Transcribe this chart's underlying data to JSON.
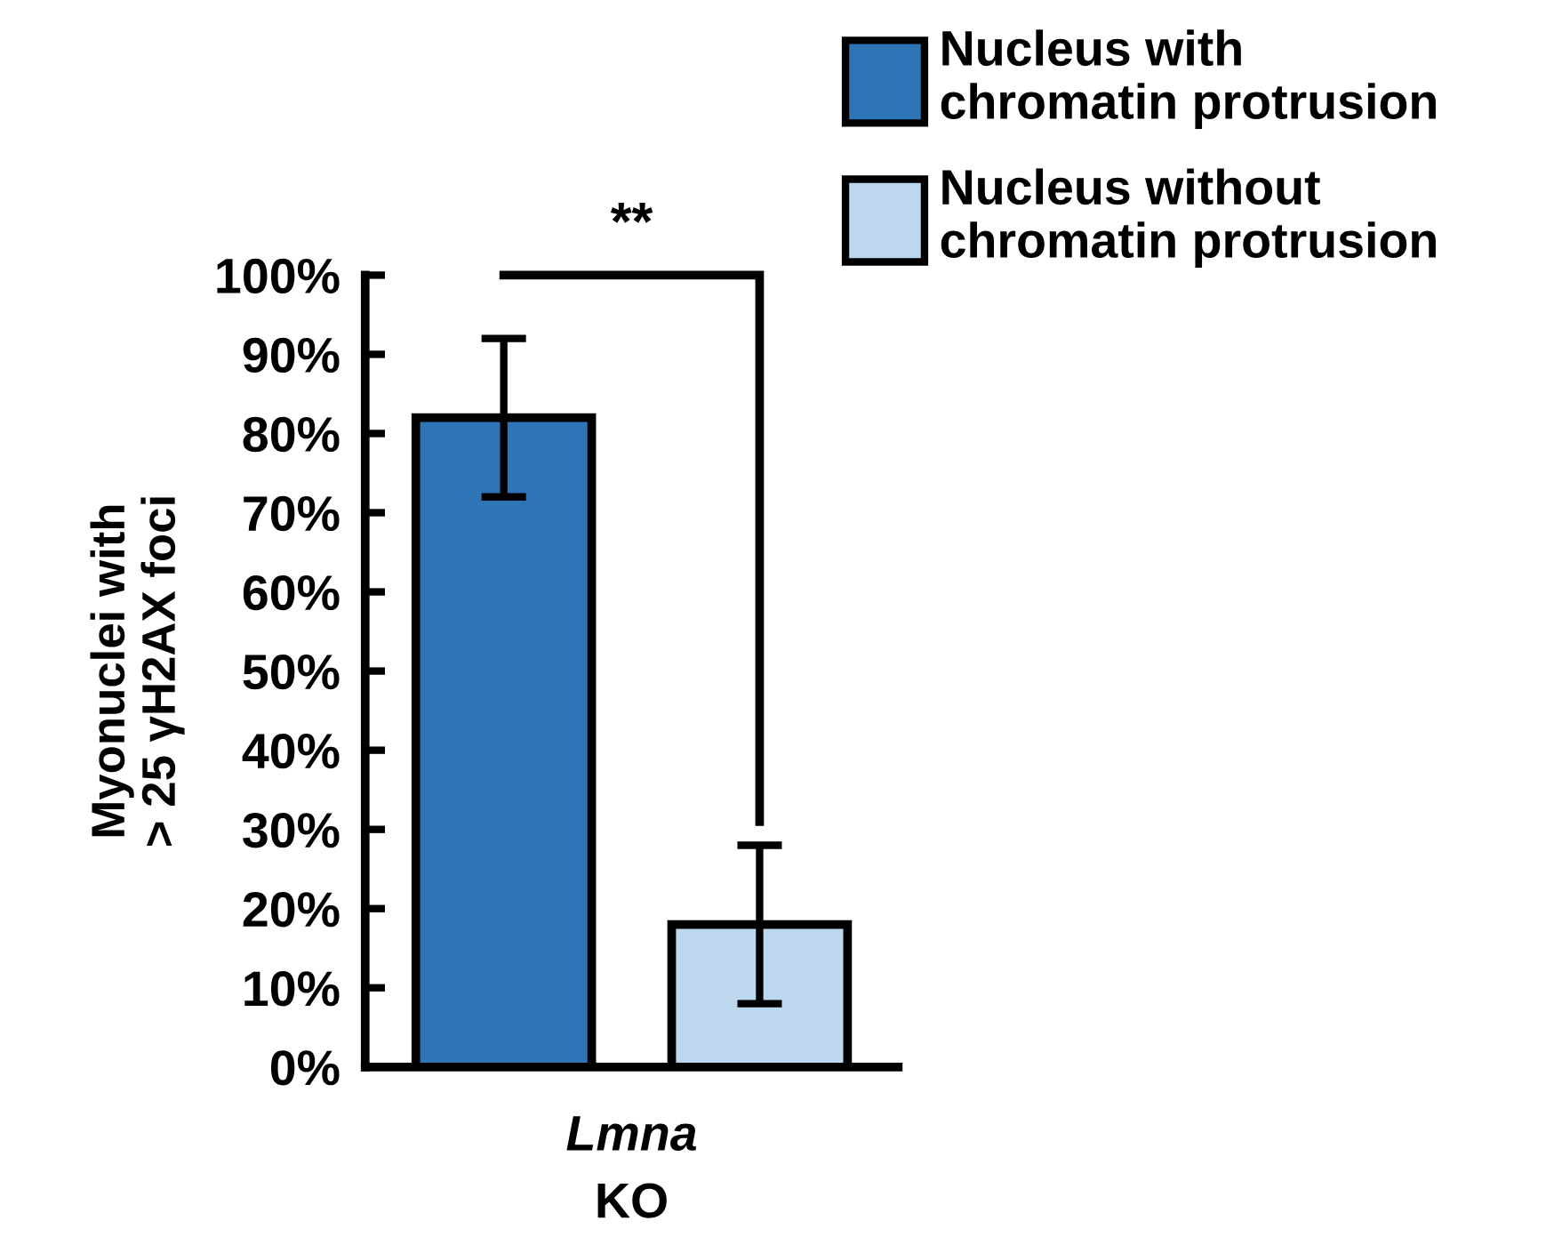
{
  "chart_data": {
    "type": "bar",
    "ylabel": "Myonuclei with\n> 25 γH2AX foci",
    "categories": [
      "Lmna\nKO"
    ],
    "series": [
      {
        "name": "Nucleus with\nchromatin protrusion",
        "color": "#2e75b6",
        "values": [
          82
        ],
        "errors": [
          10
        ]
      },
      {
        "name": "Nucleus without\nchromatin protrusion",
        "color": "#bdd7ee",
        "values": [
          18
        ],
        "errors": [
          10
        ]
      }
    ],
    "ylim": [
      0,
      100
    ],
    "yticks": [
      {
        "value": 0,
        "label": "0%"
      },
      {
        "value": 10,
        "label": "10%"
      },
      {
        "value": 20,
        "label": "20%"
      },
      {
        "value": 30,
        "label": "30%"
      },
      {
        "value": 40,
        "label": "40%"
      },
      {
        "value": 50,
        "label": "50%"
      },
      {
        "value": 60,
        "label": "60%"
      },
      {
        "value": 70,
        "label": "70%"
      },
      {
        "value": 80,
        "label": "80%"
      },
      {
        "value": 90,
        "label": "90%"
      },
      {
        "value": 100,
        "label": "100%"
      }
    ],
    "annotations": [
      "**"
    ],
    "legend": "top right",
    "grid": false
  }
}
